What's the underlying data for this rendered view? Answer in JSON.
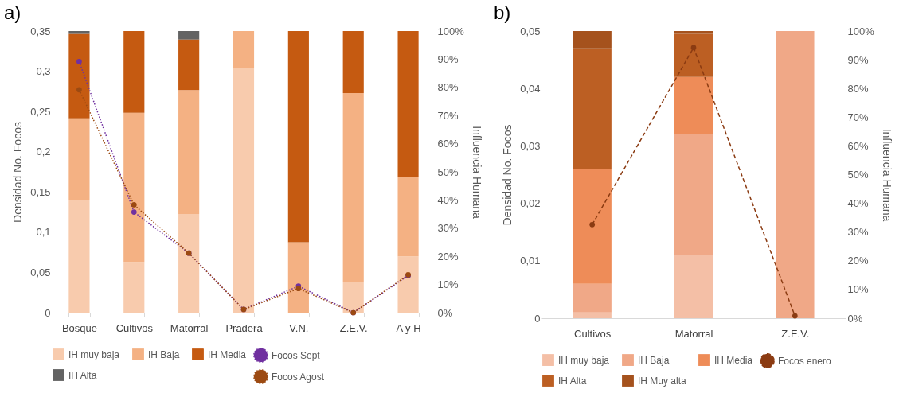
{
  "chart_data": [
    {
      "type": "bar",
      "stacked": true,
      "title": "a)",
      "ylabel": "Densidad No. Focos",
      "y2label": "Influencia Humana",
      "legend": "bottom",
      "categories": [
        "Bosque",
        "Cultivos",
        "Matorral",
        "Pradera",
        "V.N.",
        "Z.E.V.",
        "A y H"
      ],
      "ylim": [
        0,
        0.35
      ],
      "yticks": [
        0,
        {
          "value": 0.05,
          "label": "0,05"
        },
        {
          "value": 0.1,
          "label": "0,1"
        },
        {
          "value": 0.15,
          "label": "0,15"
        },
        {
          "value": 0.2,
          "label": "0,2"
        },
        {
          "value": 0.25,
          "label": "0,25"
        },
        {
          "value": 0.3,
          "label": "0,3"
        },
        {
          "value": 0.35,
          "label": "0,35"
        }
      ],
      "y2lim": [
        0,
        100
      ],
      "y2ticks": [
        {
          "value": 0,
          "label": "0%"
        },
        {
          "value": 10,
          "label": "10%"
        },
        {
          "value": 20,
          "label": "20%"
        },
        {
          "value": 30,
          "label": "30%"
        },
        {
          "value": 40,
          "label": "40%"
        },
        {
          "value": 50,
          "label": "50%"
        },
        {
          "value": 60,
          "label": "60%"
        },
        {
          "value": 70,
          "label": "70%"
        },
        {
          "value": 80,
          "label": "80%"
        },
        {
          "value": 90,
          "label": "90%"
        },
        {
          "value": 100,
          "label": "100%"
        }
      ],
      "series": [
        {
          "name": "IH muy baja",
          "type": "bar",
          "axis": "y2",
          "color": "#f8cbad",
          "values": [
            40,
            18,
            35,
            87,
            0,
            11,
            20
          ]
        },
        {
          "name": "IH Baja",
          "type": "bar",
          "axis": "y2",
          "color": "#f4b183",
          "values": [
            29,
            53,
            44,
            13,
            25,
            67,
            28
          ]
        },
        {
          "name": "IH Media",
          "type": "bar",
          "axis": "y2",
          "color": "#c55a11",
          "values": [
            30,
            29,
            18,
            0,
            75,
            22,
            52
          ]
        },
        {
          "name": "IH Alta",
          "type": "bar",
          "axis": "y2",
          "color": "#636363",
          "values": [
            1,
            0,
            3,
            0,
            0,
            0,
            0
          ]
        },
        {
          "name": "Focos Sept",
          "type": "line",
          "line_style": "dotted",
          "marker": "circle",
          "color": "#7030a0",
          "values": [
            0.312,
            0.125,
            0.074,
            0.004,
            0.033,
            0,
            0.046
          ]
        },
        {
          "name": "Focos Agost",
          "type": "line",
          "line_style": "dotted",
          "marker": "circle",
          "color": "#9c4a12",
          "values": [
            0.277,
            0.134,
            0.074,
            0.004,
            0.03,
            0,
            0.047
          ]
        }
      ]
    },
    {
      "type": "bar",
      "stacked": true,
      "title": "b)",
      "ylabel": "Densidad No. Focos",
      "y2label": "Influencia Humana",
      "legend": "bottom",
      "categories": [
        "Cultivos",
        "Matorral",
        "Z.E.V."
      ],
      "ylim": [
        0,
        0.05
      ],
      "yticks": [
        0,
        {
          "value": 0.01,
          "label": "0,01"
        },
        {
          "value": 0.02,
          "label": "0,02"
        },
        {
          "value": 0.03,
          "label": "0,03"
        },
        {
          "value": 0.04,
          "label": "0,04"
        },
        {
          "value": 0.05,
          "label": "0,05"
        }
      ],
      "y2lim": [
        0,
        100
      ],
      "y2ticks": [
        {
          "value": 0,
          "label": "0%"
        },
        {
          "value": 10,
          "label": "10%"
        },
        {
          "value": 20,
          "label": "20%"
        },
        {
          "value": 30,
          "label": "30%"
        },
        {
          "value": 40,
          "label": "40%"
        },
        {
          "value": 50,
          "label": "50%"
        },
        {
          "value": 60,
          "label": "60%"
        },
        {
          "value": 70,
          "label": "70%"
        },
        {
          "value": 80,
          "label": "80%"
        },
        {
          "value": 90,
          "label": "90%"
        },
        {
          "value": 100,
          "label": "100%"
        }
      ],
      "series": [
        {
          "name": "IH muy baja",
          "type": "bar",
          "axis": "y2",
          "color": "#f4bfa6",
          "values": [
            2,
            22,
            0
          ]
        },
        {
          "name": "IH Baja",
          "type": "bar",
          "axis": "y2",
          "color": "#f0a887",
          "values": [
            10,
            42,
            100
          ]
        },
        {
          "name": "IH Media",
          "type": "bar",
          "axis": "y2",
          "color": "#ee8c58",
          "values": [
            40,
            20,
            0
          ]
        },
        {
          "name": "IH Alta",
          "type": "bar",
          "axis": "y2",
          "color": "#bc5f23",
          "values": [
            42,
            15,
            0
          ]
        },
        {
          "name": "IH Muy alta",
          "type": "bar",
          "axis": "y2",
          "color": "#a5521d",
          "values": [
            6,
            1,
            0
          ]
        },
        {
          "name": "Focos enero",
          "type": "line",
          "line_style": "dashed",
          "marker": "circle",
          "color": "#8b3b12",
          "values": [
            0.0163,
            0.0471,
            0.0004
          ]
        }
      ]
    }
  ]
}
